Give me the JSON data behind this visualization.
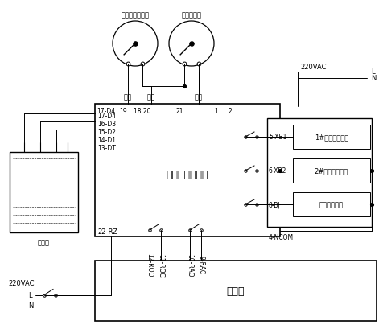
{
  "bg_color": "#ffffff",
  "line_color": "#000000",
  "gauge1_label": "自动启停炉压力",
  "gauge2_label": "超限压力表",
  "ctrl_label": "蒸汽锅炉控制器",
  "burn_label": "燃烧机",
  "elec_label": "电极筒",
  "left_pins": [
    "17-D4",
    "16-D3",
    "15-D2",
    "14-D1",
    "13-DT"
  ],
  "top_pins": [
    "17-D4",
    "19",
    "18 20",
    "21",
    "1",
    "2"
  ],
  "rz_label": "22-RZ",
  "vert_labels": [
    "12-ROO",
    "11-ROC",
    "10-RAO",
    "9-RAC"
  ],
  "right_labels": [
    "5-XB1",
    "6-XB2",
    "8-BJ",
    "4-NCOM"
  ],
  "relay_boxes": [
    "1#泵交流接触器",
    "2#泵交流接触器",
    "外部报警设备"
  ],
  "vac_label": "220VAC",
  "L_label": "L",
  "N_label": "N",
  "down_label": "下限",
  "up_label": "上限",
  "over_label": "超限",
  "fs_title": 9,
  "fs_med": 7,
  "fs_small": 6,
  "fs_tiny": 5.5
}
